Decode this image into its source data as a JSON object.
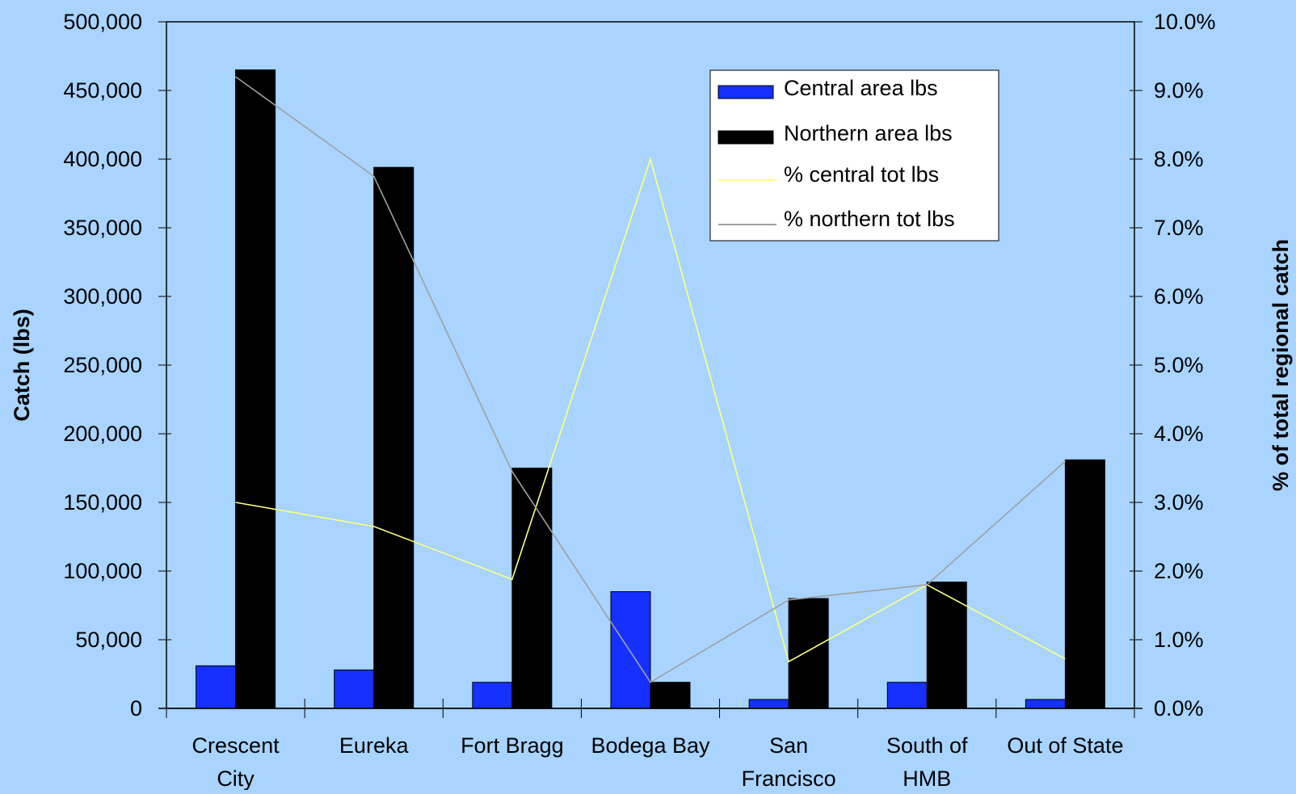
{
  "chart_data": {
    "type": "bar",
    "categories": [
      [
        "Crescent",
        "City"
      ],
      [
        "Eureka"
      ],
      [
        "Fort Bragg"
      ],
      [
        "Bodega Bay"
      ],
      [
        "San",
        "Francisco"
      ],
      [
        "South of",
        "HMB"
      ],
      [
        "Out of State"
      ]
    ],
    "series": [
      {
        "name": "Central area lbs",
        "kind": "bar",
        "axis": "left",
        "color": "#1530ff",
        "values": [
          31000,
          28000,
          19000,
          85000,
          6500,
          19000,
          6500
        ]
      },
      {
        "name": "Northern area lbs",
        "kind": "bar",
        "axis": "left",
        "color": "#000000",
        "values": [
          465000,
          394000,
          175000,
          19000,
          80000,
          92000,
          181000
        ]
      }
    ],
    "lines": [
      {
        "name": "% central tot lbs",
        "kind": "line",
        "axis": "right",
        "color": "#ffff80",
        "values": [
          3.0,
          2.65,
          1.88,
          8.0,
          0.68,
          1.8,
          0.72
        ]
      },
      {
        "name": "% northern tot lbs",
        "kind": "line",
        "axis": "right",
        "color": "#a0a0a0",
        "values": [
          9.2,
          7.75,
          3.45,
          0.38,
          1.58,
          1.8,
          3.6
        ]
      }
    ],
    "ylabel": "Catch (lbs)",
    "y2label": "% of total regional catch",
    "ylim": [
      0,
      500000
    ],
    "y2lim": [
      0,
      10
    ],
    "yticks": [
      "0",
      "50,000",
      "100,000",
      "150,000",
      "200,000",
      "250,000",
      "300,000",
      "350,000",
      "400,000",
      "450,000",
      "500,000"
    ],
    "y2ticks": [
      "0.0%",
      "1.0%",
      "2.0%",
      "3.0%",
      "4.0%",
      "5.0%",
      "6.0%",
      "7.0%",
      "8.0%",
      "9.0%",
      "10.0%"
    ],
    "legend_position": "top-right",
    "grid": false
  }
}
